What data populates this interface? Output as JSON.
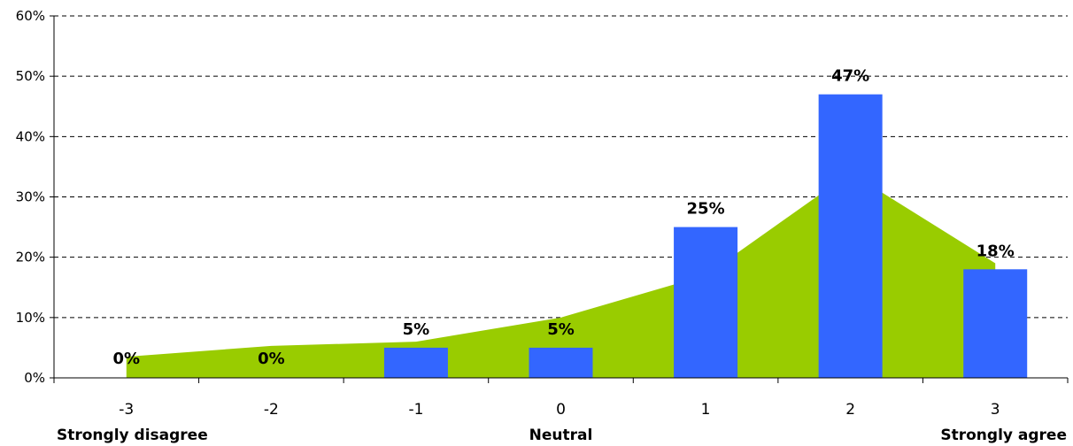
{
  "chart_data": {
    "type": "bar",
    "categories": [
      "-3",
      "-2",
      "-1",
      "0",
      "1",
      "2",
      "3"
    ],
    "series": [
      {
        "type": "bar",
        "values": [
          0,
          0,
          5,
          5,
          25,
          47,
          18
        ],
        "color": "#3366FF"
      },
      {
        "type": "area",
        "values": [
          3.5,
          5.3,
          6,
          10,
          17,
          34,
          19
        ],
        "color": "#99CC00"
      }
    ],
    "data_labels": [
      "0%",
      "0%",
      "5%",
      "5%",
      "25%",
      "47%",
      "18%"
    ],
    "anchor_labels": [
      {
        "category": "-3",
        "text": "Strongly disagree"
      },
      {
        "category": "0",
        "text": "Neutral"
      },
      {
        "category": "3",
        "text": "Strongly agree"
      }
    ],
    "y_ticks": [
      "0%",
      "10%",
      "20%",
      "30%",
      "40%",
      "50%",
      "60%"
    ],
    "ylim": [
      0,
      60
    ],
    "grid": "horizontal dashed",
    "title": "",
    "xlabel": "",
    "ylabel": ""
  }
}
